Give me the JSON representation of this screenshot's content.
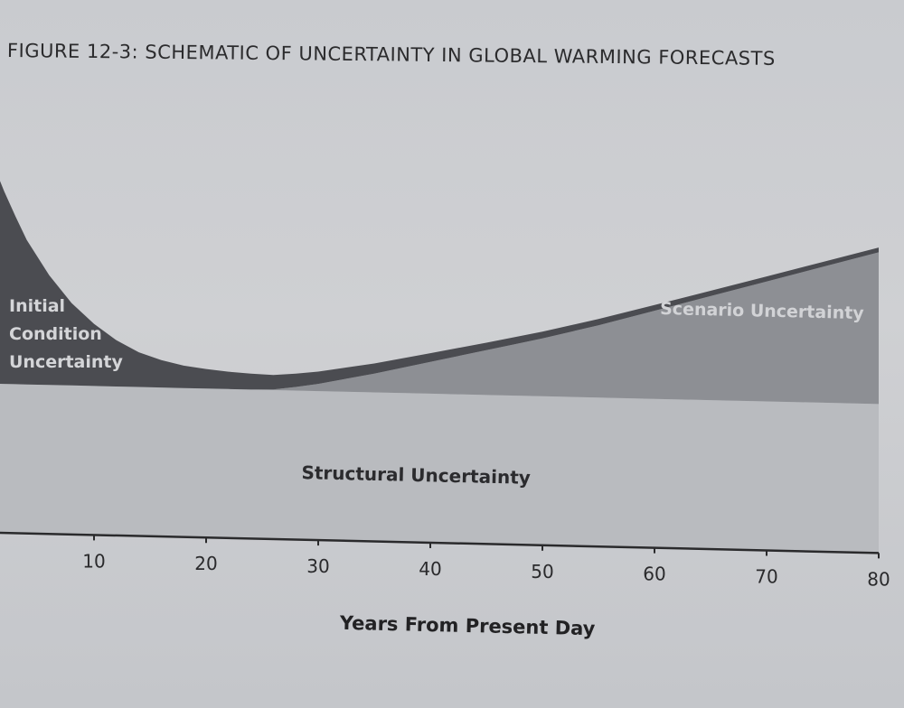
{
  "title": "FIGURE 12-3: SCHEMATIC OF UNCERTAINTY IN GLOBAL WARMING FORECASTS",
  "colors": {
    "initial": "#4b4c51",
    "scenario": "#8d8f94",
    "structural": "#b9bbbf",
    "axis": "#2a2a2c"
  },
  "chart_data": {
    "type": "area",
    "xlabel": "Years From Present Day",
    "ylabel": "",
    "xlim": [
      0,
      80
    ],
    "xticks": [
      10,
      20,
      30,
      40,
      50,
      60,
      70,
      80
    ],
    "x": [
      0,
      1,
      2,
      3,
      4,
      5,
      6,
      8,
      10,
      12,
      14,
      16,
      18,
      20,
      22,
      24,
      26,
      28,
      30,
      35,
      40,
      45,
      50,
      55,
      60,
      65,
      70,
      75,
      80
    ],
    "series": [
      {
        "name": "Structural Uncertainty",
        "values": [
          1.0,
          1.0,
          1.0,
          1.0,
          1.0,
          1.0,
          1.0,
          1.0,
          1.0,
          1.0,
          1.0,
          1.0,
          1.0,
          1.0,
          1.0,
          1.0,
          1.0,
          1.0,
          1.0,
          1.0,
          1.0,
          1.0,
          1.0,
          1.0,
          1.0,
          1.0,
          1.0,
          1.0,
          1.0
        ]
      },
      {
        "name": "Initial Condition Uncertainty",
        "values": [
          1.73,
          1.52,
          1.33,
          1.16,
          1.0,
          0.88,
          0.76,
          0.57,
          0.43,
          0.32,
          0.24,
          0.19,
          0.155,
          0.135,
          0.12,
          0.11,
          0.1,
          0.092,
          0.085,
          0.07,
          0.06,
          0.052,
          0.047,
          0.043,
          0.04,
          0.037,
          0.035,
          0.034,
          0.033
        ]
      },
      {
        "name": "Scenario Uncertainty",
        "values": [
          0.0,
          0.0,
          0.0,
          0.0,
          0.0,
          0.0,
          0.0,
          0.0,
          0.0,
          0.0,
          0.0,
          0.0,
          0.0,
          0.0,
          0.0,
          0.0,
          0.005,
          0.025,
          0.05,
          0.13,
          0.22,
          0.31,
          0.4,
          0.5,
          0.61,
          0.72,
          0.83,
          0.94,
          1.05
        ]
      }
    ],
    "annotations": {
      "initial": [
        "Initial",
        "Condition",
        "Uncertainty"
      ],
      "scenario": "Scenario Uncertainty",
      "structural": "Structural Uncertainty"
    }
  }
}
